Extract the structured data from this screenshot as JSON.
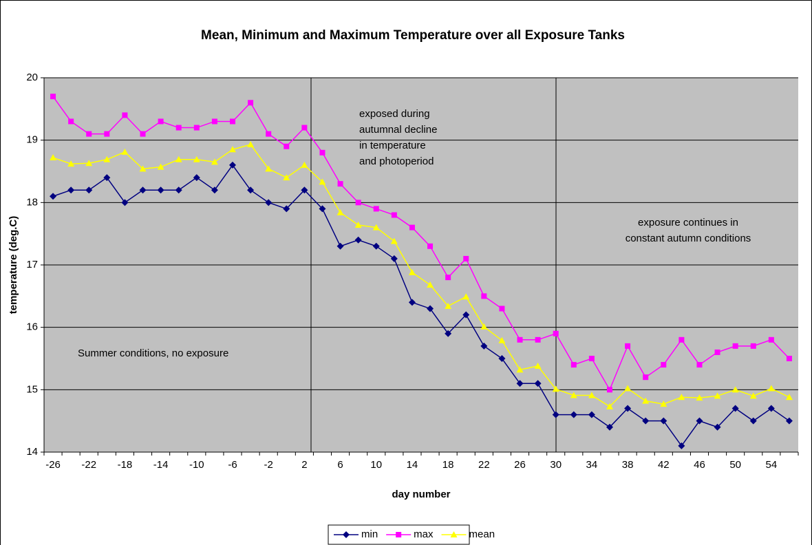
{
  "chart_data": {
    "type": "line",
    "title": "Mean, Minimum and Maximum Temperature over all Exposure Tanks",
    "x_label": "day number",
    "y_label": "temperature (deg.C)",
    "categories": [
      -26,
      null,
      -22,
      null,
      -18,
      null,
      -14,
      null,
      -10,
      null,
      -6,
      null,
      -2,
      null,
      2,
      null,
      6,
      null,
      10,
      null,
      14,
      null,
      18,
      null,
      22,
      null,
      26,
      null,
      30,
      null,
      34,
      null,
      38,
      null,
      42,
      null,
      46,
      null,
      50,
      null,
      54,
      null
    ],
    "series": [
      {
        "name": "min",
        "color": "#000080",
        "marker": "diamond",
        "values": [
          18.1,
          18.2,
          18.2,
          18.4,
          18.0,
          18.2,
          18.2,
          18.2,
          18.4,
          18.2,
          18.6,
          18.2,
          18.0,
          17.9,
          18.2,
          17.9,
          17.3,
          17.4,
          17.3,
          17.1,
          16.4,
          16.3,
          15.9,
          16.2,
          15.7,
          15.5,
          15.1,
          15.1,
          14.6,
          14.6,
          14.6,
          14.4,
          14.7,
          14.5,
          14.5,
          14.1,
          14.5,
          14.4,
          14.7,
          14.5,
          14.7,
          14.5
        ]
      },
      {
        "name": "max",
        "color": "#ff00ff",
        "marker": "square",
        "values": [
          19.7,
          19.3,
          19.1,
          19.1,
          19.4,
          19.1,
          19.3,
          19.2,
          19.2,
          19.3,
          19.3,
          19.6,
          19.1,
          18.9,
          19.2,
          18.8,
          18.3,
          18.0,
          17.9,
          17.8,
          17.6,
          17.3,
          16.8,
          17.1,
          16.5,
          16.3,
          15.8,
          15.8,
          15.9,
          15.4,
          15.5,
          15.0,
          15.7,
          15.2,
          15.4,
          15.8,
          15.4,
          15.6,
          15.7,
          15.7,
          15.8,
          15.5
        ]
      },
      {
        "name": "mean",
        "color": "#ffff00",
        "marker": "triangle",
        "values": [
          18.72,
          18.62,
          18.63,
          18.69,
          18.81,
          18.54,
          18.57,
          18.69,
          18.69,
          18.65,
          18.85,
          18.93,
          18.54,
          18.4,
          18.6,
          18.33,
          17.84,
          17.64,
          17.6,
          17.38,
          16.88,
          16.68,
          16.34,
          16.49,
          16.01,
          15.79,
          15.32,
          15.38,
          15.01,
          14.91,
          14.91,
          14.73,
          15.02,
          14.82,
          14.77,
          14.88,
          14.87,
          14.9,
          15.0,
          14.9,
          15.02,
          14.88
        ]
      }
    ],
    "ylim": [
      14,
      20
    ],
    "yticks": [
      14,
      15,
      16,
      17,
      18,
      19,
      20
    ],
    "grid": true,
    "legend": "bottom",
    "annotations": [
      [
        "exposed during",
        "autumnal decline",
        "in temperature",
        "and photoperiod"
      ],
      [
        "exposure continues in",
        "constant autumn conditions"
      ],
      [
        "Summer conditions, no exposure"
      ]
    ]
  }
}
